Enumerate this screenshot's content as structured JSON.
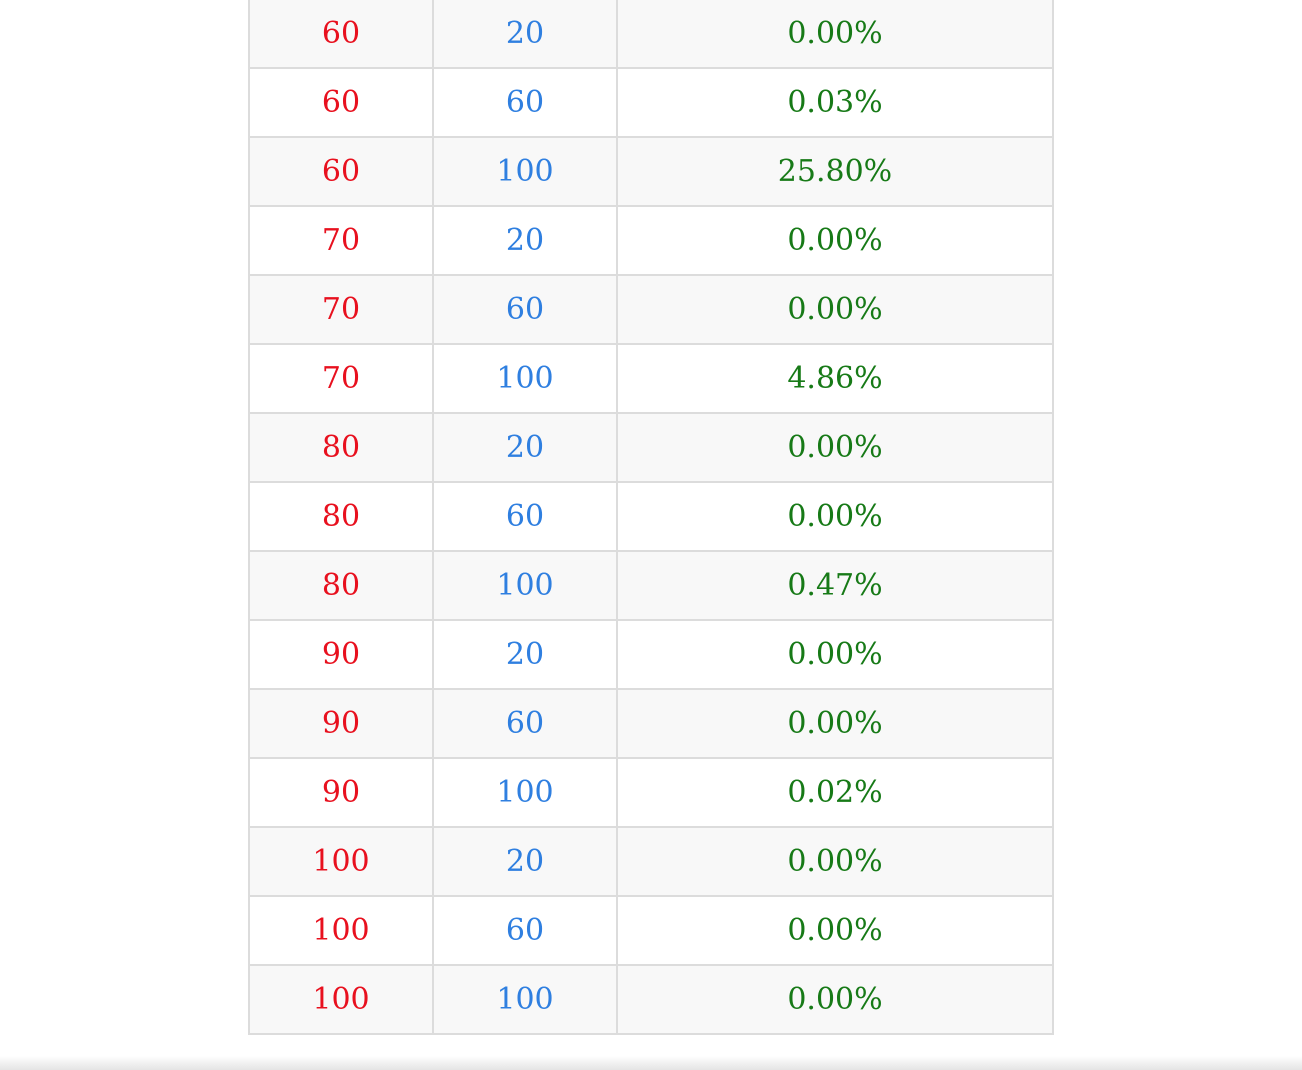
{
  "table": {
    "rows": [
      {
        "a": "60",
        "b": "20",
        "c": "0.00%"
      },
      {
        "a": "60",
        "b": "60",
        "c": "0.03%"
      },
      {
        "a": "60",
        "b": "100",
        "c": "25.80%"
      },
      {
        "a": "70",
        "b": "20",
        "c": "0.00%"
      },
      {
        "a": "70",
        "b": "60",
        "c": "0.00%"
      },
      {
        "a": "70",
        "b": "100",
        "c": "4.86%"
      },
      {
        "a": "80",
        "b": "20",
        "c": "0.00%"
      },
      {
        "a": "80",
        "b": "60",
        "c": "0.00%"
      },
      {
        "a": "80",
        "b": "100",
        "c": "0.47%"
      },
      {
        "a": "90",
        "b": "20",
        "c": "0.00%"
      },
      {
        "a": "90",
        "b": "60",
        "c": "0.00%"
      },
      {
        "a": "90",
        "b": "100",
        "c": "0.02%"
      },
      {
        "a": "100",
        "b": "20",
        "c": "0.00%"
      },
      {
        "a": "100",
        "b": "60",
        "c": "0.00%"
      },
      {
        "a": "100",
        "b": "100",
        "c": "0.00%"
      }
    ]
  },
  "colors": {
    "column_1": "#e8101e",
    "column_2": "#2f7fe0",
    "column_3": "#177a17",
    "border": "#dcdcdc",
    "stripe": "#f8f8f8"
  }
}
